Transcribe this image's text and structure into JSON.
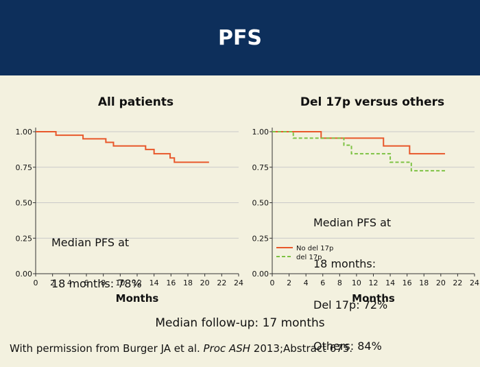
{
  "slide": {
    "title": "PFS",
    "followup": "Median follow-up: 17 months",
    "citation_prefix": "With permission from Burger JA et al. ",
    "citation_journal": "Proc ASH",
    "citation_suffix": " 2013;Abstract 675."
  },
  "colors": {
    "header": "#0d2f5b",
    "background": "#f3f1df",
    "no_del": "#e8572a",
    "del": "#7dc243"
  },
  "chart_data": [
    {
      "type": "line",
      "title": "All patients",
      "xlabel": "Months",
      "ylabel": "",
      "xlim": [
        0,
        24
      ],
      "ylim": [
        0,
        1.0
      ],
      "xticks": [
        "0",
        "2",
        "4",
        "6",
        "8",
        "10",
        "12",
        "14",
        "16",
        "18",
        "20",
        "22",
        "24"
      ],
      "yticks": [
        "0.00",
        "0.25",
        "0.50",
        "0.75",
        "1.00"
      ],
      "grid": "horizontal",
      "step": true,
      "annotation": [
        "Median PFS at",
        "18 months: 78%"
      ],
      "series": [
        {
          "color": "#e8572a",
          "dash": false,
          "x": [
            0,
            2.4,
            5.6,
            8.3,
            9.2,
            13,
            14,
            15.9,
            16.4,
            20.5
          ],
          "y": [
            1.0,
            0.975,
            0.95,
            0.925,
            0.9,
            0.875,
            0.845,
            0.815,
            0.785,
            0.785
          ]
        }
      ]
    },
    {
      "type": "line",
      "title": "Del 17p versus others",
      "xlabel": "Months",
      "ylabel": "",
      "xlim": [
        0,
        24
      ],
      "ylim": [
        0,
        1.0
      ],
      "xticks": [
        "0",
        "2",
        "4",
        "6",
        "8",
        "10",
        "12",
        "14",
        "16",
        "18",
        "20",
        "22",
        "24"
      ],
      "yticks": [
        "0.00",
        "0.25",
        "0.50",
        "0.75",
        "1.00"
      ],
      "grid": "horizontal",
      "step": true,
      "legend_position": "bottom-left",
      "annotation": [
        "Median PFS at",
        "18 months:",
        "Del 17p: 72%",
        "Others: 84%"
      ],
      "series": [
        {
          "name": "No del 17p",
          "color": "#e8572a",
          "dash": false,
          "x": [
            0,
            5.8,
            13.2,
            16.3,
            20.5
          ],
          "y": [
            1.0,
            0.955,
            0.9,
            0.845,
            0.845
          ]
        },
        {
          "name": "del 17p",
          "color": "#7dc243",
          "dash": true,
          "x": [
            0,
            2.5,
            5.5,
            8.5,
            9.4,
            14,
            16.5,
            20.5
          ],
          "y": [
            1.0,
            0.955,
            0.955,
            0.905,
            0.845,
            0.785,
            0.725,
            0.725
          ]
        }
      ]
    }
  ]
}
